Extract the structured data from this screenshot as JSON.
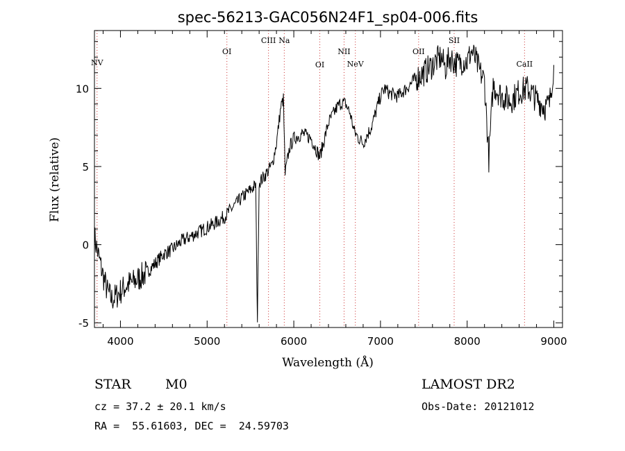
{
  "chart_data": {
    "type": "line",
    "title": "spec-56213-GAC056N24F1_sp04-006.fits",
    "xlabel": "Wavelength (Å)",
    "ylabel": "Flux (relative)",
    "xlim": [
      3700,
      9100
    ],
    "ylim": [
      -5.3,
      13.7
    ],
    "xticks": [
      4000,
      5000,
      6000,
      7000,
      8000,
      9000
    ],
    "yticks": [
      -5,
      0,
      5,
      10
    ],
    "series": [
      {
        "x": [
          3700,
          3750,
          3800,
          3850,
          3900,
          3950,
          4000,
          4050,
          4100,
          4150,
          4200,
          4300,
          4400,
          4500,
          4600,
          4700,
          4800,
          4900,
          5000,
          5100,
          5200,
          5300,
          5400,
          5500,
          5560,
          5580,
          5600,
          5650,
          5700,
          5750,
          5800,
          5850,
          5880,
          5900,
          5950,
          6000,
          6100,
          6200,
          6300,
          6400,
          6500,
          6550,
          6600,
          6650,
          6700,
          6750,
          6800,
          6900,
          7000,
          7050,
          7100,
          7200,
          7300,
          7400,
          7500,
          7600,
          7650,
          7700,
          7750,
          7800,
          7850,
          7900,
          7950,
          8000,
          8050,
          8100,
          8150,
          8200,
          8250,
          8300,
          8400,
          8500,
          8600,
          8700,
          8800,
          8900,
          8950,
          9000
        ],
        "y": [
          0.5,
          -0.8,
          -2.0,
          -3.0,
          -3.5,
          -3.3,
          -3.0,
          -2.7,
          -2.5,
          -2.4,
          -2.2,
          -1.8,
          -1.2,
          -0.6,
          -0.3,
          0.2,
          0.5,
          0.8,
          1.1,
          1.4,
          1.8,
          2.4,
          3.0,
          3.5,
          3.8,
          -4.8,
          4.0,
          4.3,
          4.7,
          5.1,
          6.5,
          8.8,
          9.3,
          4.5,
          6.2,
          6.8,
          7.1,
          6.8,
          5.6,
          7.8,
          8.8,
          9.1,
          9.0,
          8.4,
          7.2,
          6.8,
          6.5,
          7.6,
          9.5,
          10.0,
          9.7,
          9.5,
          10.0,
          10.6,
          11.0,
          11.5,
          11.8,
          12.0,
          11.3,
          12.0,
          11.7,
          11.5,
          11.8,
          11.7,
          12.4,
          11.8,
          11.0,
          10.5,
          5.5,
          10.2,
          9.5,
          9.2,
          9.8,
          10.0,
          9.3,
          8.8,
          9.0,
          11.5
        ]
      }
    ],
    "spectral_lines": [
      {
        "label": "NV",
        "wavelength": 3730
      },
      {
        "label": "OI",
        "wavelength": 5228
      },
      {
        "label": "CIII",
        "wavelength": 5708
      },
      {
        "label": "Na",
        "wavelength": 5890
      },
      {
        "label": "OI",
        "wavelength": 6300
      },
      {
        "label": "NII",
        "wavelength": 6580
      },
      {
        "label": "NeV",
        "wavelength": 6710
      },
      {
        "label": "OII",
        "wavelength": 7440
      },
      {
        "label": "SII",
        "wavelength": 7850
      },
      {
        "label": "CaII",
        "wavelength": 8662
      }
    ],
    "grid": false,
    "legend": "none"
  },
  "info": {
    "object_class": "STAR",
    "subclass": "M0",
    "cz": "cz = 37.2 ± 20.1 km/s",
    "coords": "RA =  55.61603, DEC =  24.59703",
    "survey": "LAMOST DR2",
    "obs_date": "Obs-Date: 20121012"
  }
}
